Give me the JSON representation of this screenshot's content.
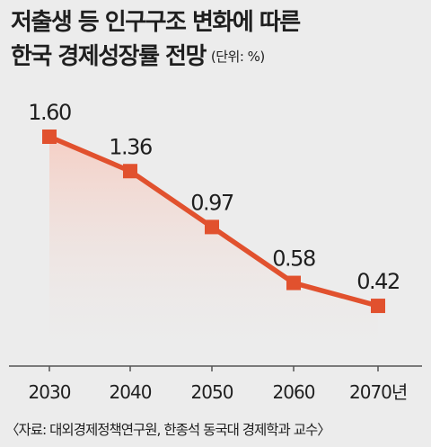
{
  "title": {
    "line1": "저출생 등 인구구조 변화에 따른",
    "line2": "한국 경제성장률 전망",
    "unit": "(단위: %)"
  },
  "source": "〈자료: 대외경제정책연구원, 한종석 동국대 경제학과 교수〉",
  "chart_data": {
    "type": "line",
    "categories": [
      "2030",
      "2040",
      "2050",
      "2060",
      "2070년"
    ],
    "values": [
      1.6,
      1.36,
      0.97,
      0.58,
      0.42
    ],
    "labels": [
      "1.60",
      "1.36",
      "0.97",
      "0.58",
      "0.42"
    ],
    "title": "저출생 등 인구구조 변화에 따른 한국 경제성장률 전망",
    "unit": "(단위: %)",
    "ylim": [
      0,
      1.6
    ],
    "grid": false,
    "line_color": "#e1512e",
    "fill_color": "#f7dcd5"
  }
}
